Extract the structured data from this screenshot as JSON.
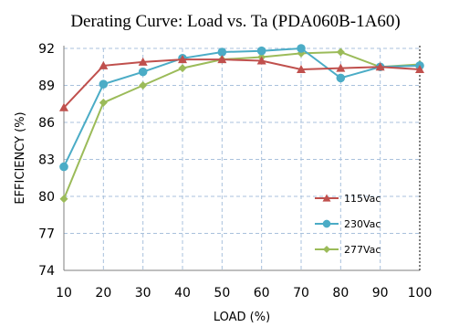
{
  "chart_data": {
    "type": "line",
    "title": "Derating Curve: Load vs. Ta (PDA060B-1A60)",
    "xlabel": "LOAD (%)",
    "ylabel": "EFFICIENCY (%)",
    "x": [
      10,
      20,
      30,
      40,
      50,
      60,
      70,
      80,
      90,
      100
    ],
    "xlim": [
      10,
      100
    ],
    "ylim": [
      74,
      92
    ],
    "yticks": [
      74,
      77,
      80,
      83,
      86,
      89,
      92
    ],
    "grid": true,
    "legend_position": "right",
    "series": [
      {
        "name": "115Vac",
        "marker": "triangle",
        "color": "#c0504d",
        "values": [
          87.2,
          90.6,
          90.9,
          91.1,
          91.1,
          91.0,
          90.3,
          90.4,
          90.5,
          90.3
        ]
      },
      {
        "name": "230Vac",
        "marker": "circle",
        "color": "#4bacc6",
        "values": [
          82.4,
          89.1,
          90.1,
          91.2,
          91.7,
          91.8,
          92.0,
          89.6,
          90.5,
          90.6
        ]
      },
      {
        "name": "277Vac",
        "marker": "diamond",
        "color": "#9bbb59",
        "values": [
          79.8,
          87.6,
          89.0,
          90.4,
          91.1,
          91.3,
          91.6,
          91.7,
          90.5,
          90.7
        ]
      }
    ]
  }
}
